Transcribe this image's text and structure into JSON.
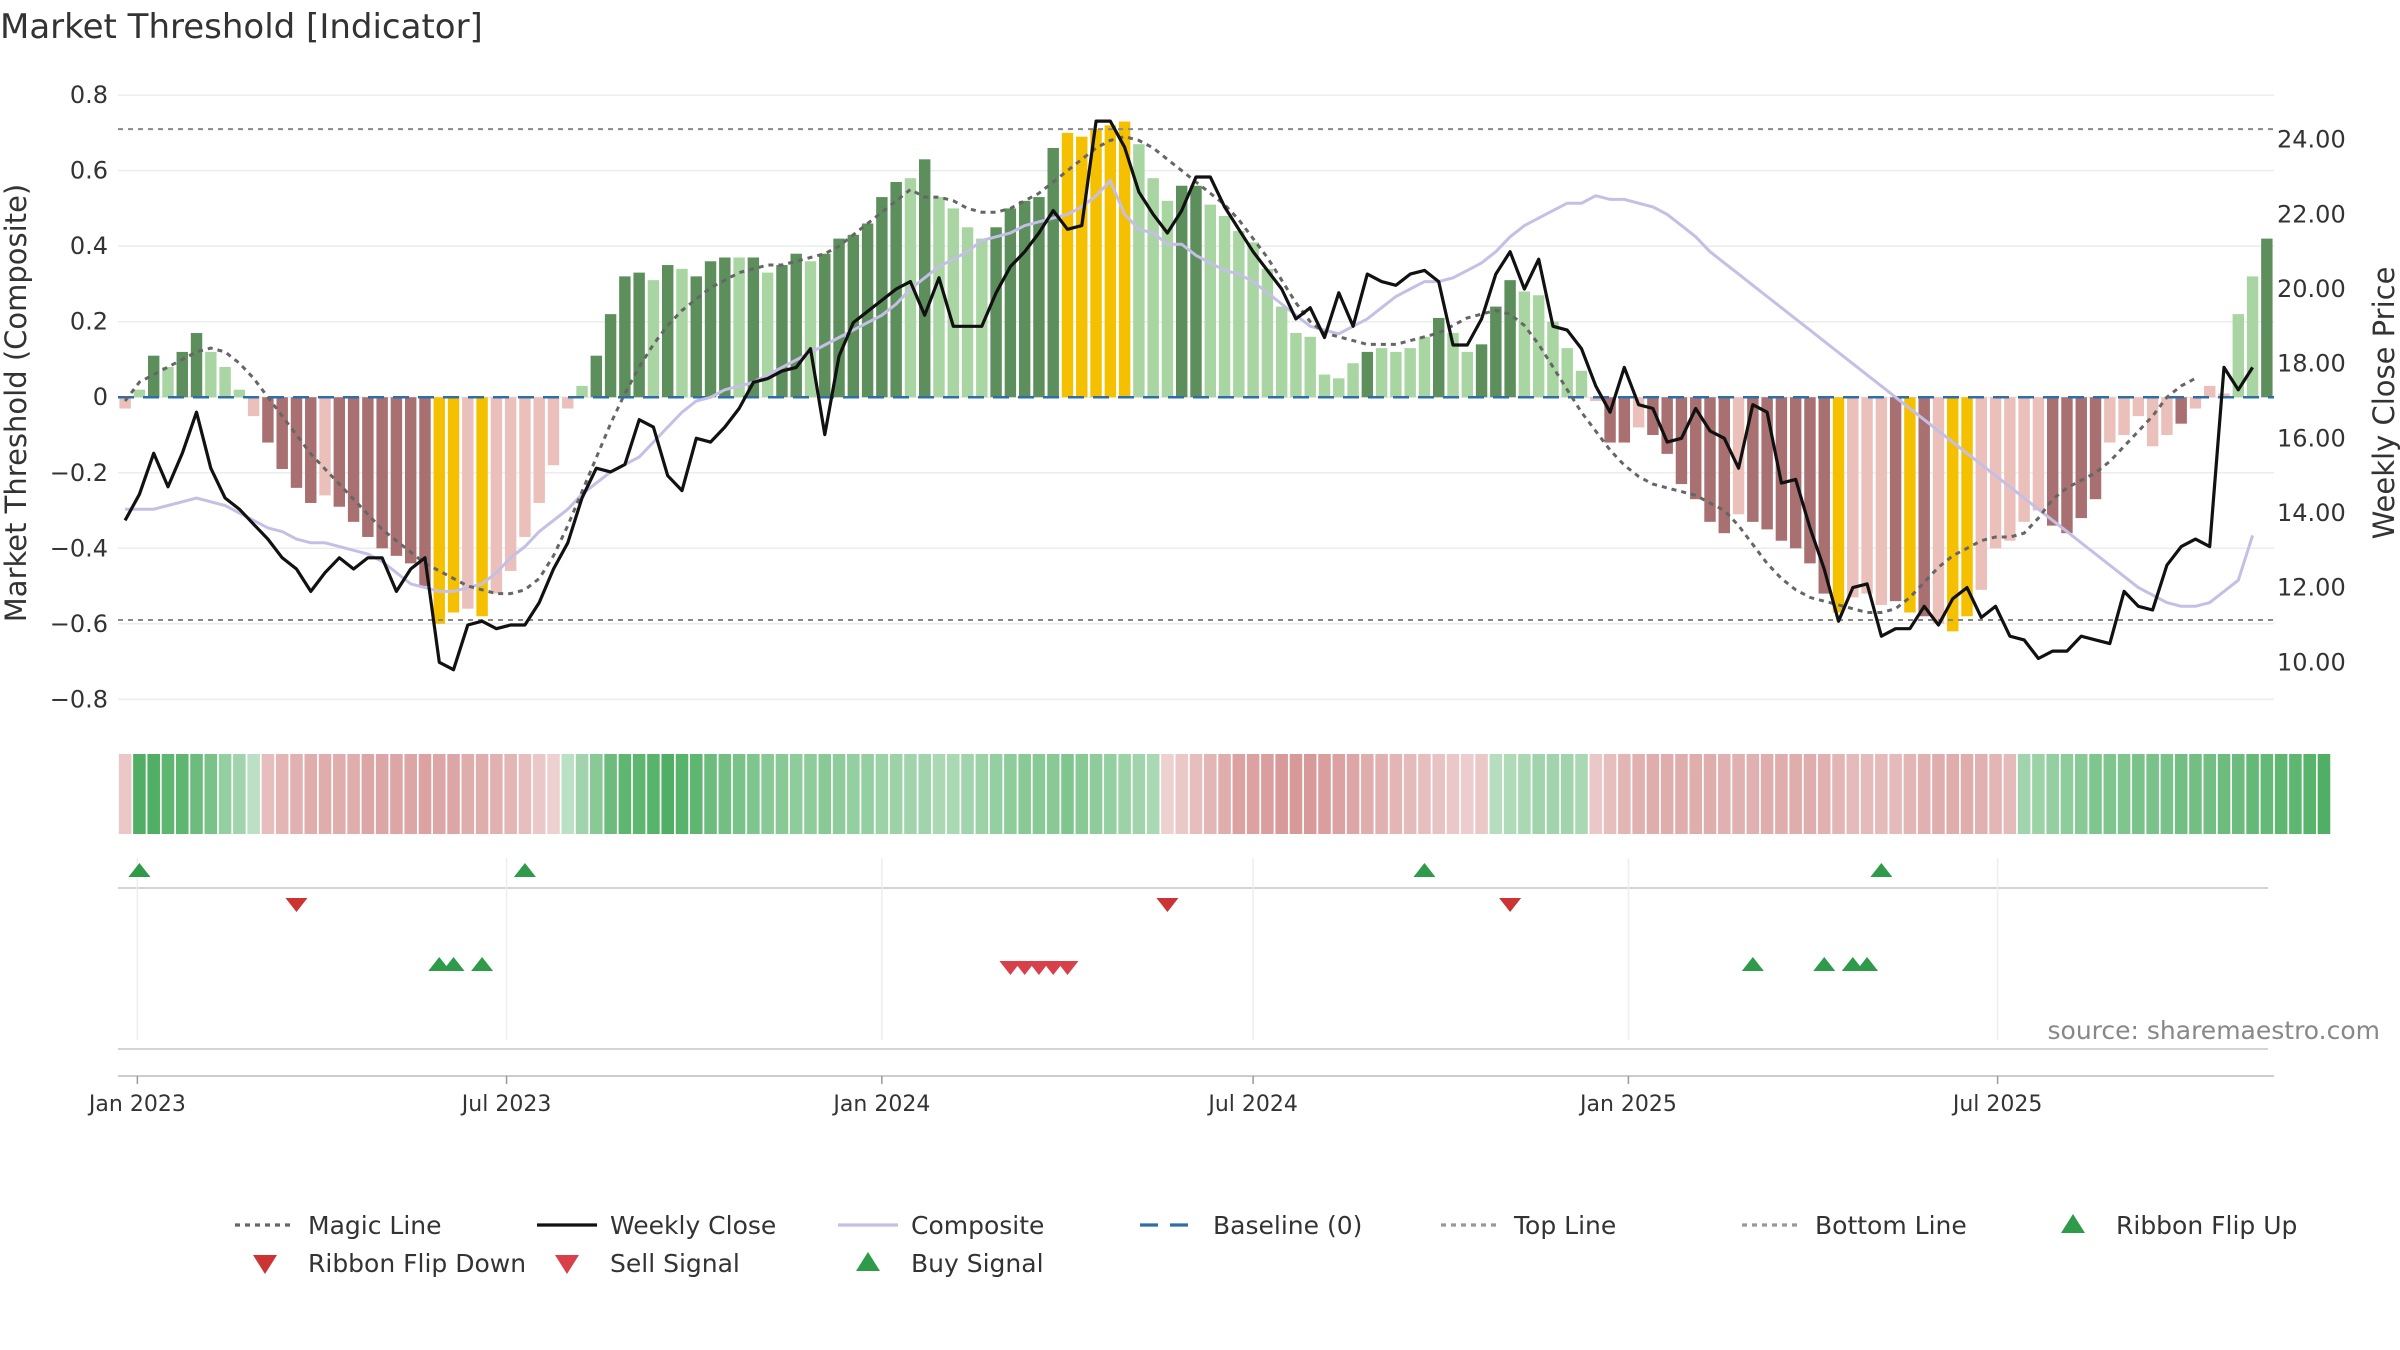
{
  "title": "Market Threshold [Indicator]",
  "source": "source: sharemaestro.com",
  "colors": {
    "bull_dark": "#5c8f5c",
    "bull_light": "#a8d5a2",
    "bear_dark": "#a87070",
    "bear_light": "#ebc0ba",
    "extreme": "#f5c000",
    "composite": "#c5bfe6",
    "baseline": "#2e6fa8",
    "buy": "#2e9a4a",
    "sell": "#d8404a",
    "flip_down": "#cc3333"
  },
  "chart_data": {
    "type": "bar",
    "title": "Market Threshold [Indicator]",
    "ylabel_left": "Market Threshold (Composite)",
    "ylabel_right": "Weekly Close Price",
    "ylim_left": [
      -0.86,
      0.84
    ],
    "ylim_right": [
      8.4,
      25.6
    ],
    "yticks_left": [
      "0.8",
      "0.6",
      "0.4",
      "0.2",
      "0",
      "−0.2",
      "−0.4",
      "−0.6",
      "−0.8"
    ],
    "yticks_right": [
      "24.00",
      "22.00",
      "20.00",
      "18.00",
      "16.00",
      "14.00",
      "12.00",
      "10.00"
    ],
    "top_line": 0.71,
    "bottom_line": -0.59,
    "baseline": 0,
    "x_start": "2022-12-26",
    "x_step_days": 7,
    "x_ticks": [
      {
        "label": "Jan 2023",
        "date": "2023-01-01"
      },
      {
        "label": "Jul 2023",
        "date": "2023-07-01"
      },
      {
        "label": "Jan 2024",
        "date": "2024-01-01"
      },
      {
        "label": "Jul 2024",
        "date": "2024-07-01"
      },
      {
        "label": "Jan 2025",
        "date": "2025-01-01"
      },
      {
        "label": "Jul 2025",
        "date": "2025-07-01"
      }
    ],
    "histogram": [
      -0.03,
      0.02,
      0.11,
      0.08,
      0.12,
      0.17,
      0.12,
      0.08,
      0.02,
      -0.05,
      -0.12,
      -0.19,
      -0.24,
      -0.28,
      -0.26,
      -0.29,
      -0.33,
      -0.37,
      -0.4,
      -0.42,
      -0.44,
      -0.5,
      -0.6,
      -0.57,
      -0.56,
      -0.58,
      -0.52,
      -0.46,
      -0.37,
      -0.28,
      -0.18,
      -0.03,
      0.03,
      0.11,
      0.22,
      0.32,
      0.33,
      0.31,
      0.35,
      0.34,
      0.32,
      0.36,
      0.37,
      0.37,
      0.37,
      0.33,
      0.35,
      0.38,
      0.36,
      0.38,
      0.42,
      0.43,
      0.46,
      0.53,
      0.57,
      0.58,
      0.63,
      0.53,
      0.5,
      0.45,
      0.42,
      0.45,
      0.5,
      0.52,
      0.53,
      0.66,
      0.7,
      0.69,
      0.71,
      0.72,
      0.73,
      0.67,
      0.58,
      0.52,
      0.56,
      0.56,
      0.51,
      0.48,
      0.44,
      0.41,
      0.34,
      0.24,
      0.17,
      0.16,
      0.06,
      0.05,
      0.09,
      0.12,
      0.13,
      0.12,
      0.13,
      0.16,
      0.21,
      0.17,
      0.12,
      0.14,
      0.24,
      0.31,
      0.28,
      0.27,
      0.2,
      0.13,
      0.07,
      -0.01,
      -0.12,
      -0.12,
      -0.08,
      -0.1,
      -0.15,
      -0.23,
      -0.27,
      -0.33,
      -0.36,
      -0.31,
      -0.33,
      -0.35,
      -0.38,
      -0.4,
      -0.44,
      -0.52,
      -0.57,
      -0.53,
      -0.52,
      -0.55,
      -0.54,
      -0.57,
      -0.58,
      -0.6,
      -0.62,
      -0.58,
      -0.51,
      -0.4,
      -0.38,
      -0.33,
      -0.3,
      -0.34,
      -0.36,
      -0.32,
      -0.27,
      -0.12,
      -0.1,
      -0.05,
      -0.13,
      -0.1,
      -0.07,
      -0.03,
      0.03,
      0.01,
      0.22,
      0.32,
      0.42
    ],
    "histogram_classes": [
      "bear_light",
      "bull_light",
      "bull_dark",
      "bull_light",
      "bull_dark",
      "bull_dark",
      "bull_light",
      "bull_light",
      "bull_light",
      "bear_light",
      "bear_dark",
      "bear_dark",
      "bear_dark",
      "bear_dark",
      "bear_light",
      "bear_dark",
      "bear_dark",
      "bear_dark",
      "bear_dark",
      "bear_dark",
      "bear_dark",
      "bear_dark",
      "extreme",
      "extreme",
      "bear_light",
      "extreme",
      "bear_light",
      "bear_light",
      "bear_light",
      "bear_light",
      "bear_light",
      "bear_light",
      "bull_light",
      "bull_dark",
      "bull_dark",
      "bull_dark",
      "bull_dark",
      "bull_light",
      "bull_dark",
      "bull_light",
      "bull_dark",
      "bull_dark",
      "bull_dark",
      "bull_light",
      "bull_dark",
      "bull_light",
      "bull_dark",
      "bull_dark",
      "bull_light",
      "bull_dark",
      "bull_dark",
      "bull_dark",
      "bull_dark",
      "bull_dark",
      "bull_dark",
      "bull_light",
      "bull_dark",
      "bull_light",
      "bull_light",
      "bull_light",
      "bull_light",
      "bull_dark",
      "bull_dark",
      "bull_dark",
      "bull_dark",
      "bull_dark",
      "extreme",
      "extreme",
      "extreme",
      "extreme",
      "extreme",
      "bull_light",
      "bull_light",
      "bull_light",
      "bull_dark",
      "bull_dark",
      "bull_light",
      "bull_light",
      "bull_light",
      "bull_light",
      "bull_light",
      "bull_light",
      "bull_light",
      "bull_light",
      "bull_light",
      "bull_light",
      "bull_light",
      "bull_dark",
      "bull_light",
      "bull_light",
      "bull_light",
      "bull_light",
      "bull_dark",
      "bull_light",
      "bull_light",
      "bull_dark",
      "bull_dark",
      "bull_dark",
      "bull_light",
      "bull_light",
      "bull_light",
      "bull_light",
      "bull_light",
      "bear_light",
      "bear_dark",
      "bear_dark",
      "bear_light",
      "bear_dark",
      "bear_dark",
      "bear_dark",
      "bear_dark",
      "bear_dark",
      "bear_dark",
      "bear_light",
      "bear_dark",
      "bear_dark",
      "bear_dark",
      "bear_dark",
      "bear_dark",
      "bear_dark",
      "extreme",
      "bear_light",
      "bear_light",
      "bear_light",
      "bear_dark",
      "extreme",
      "bear_dark",
      "bear_light",
      "extreme",
      "extreme",
      "bear_light",
      "bear_light",
      "bear_light",
      "bear_light",
      "bear_light",
      "bear_dark",
      "bear_dark",
      "bear_dark",
      "bear_dark",
      "bear_light",
      "bear_light",
      "bear_light",
      "bear_light",
      "bear_light",
      "bear_dark",
      "bear_light",
      "bear_light",
      "bear_light",
      "bull_light",
      "bull_light",
      "bull_dark",
      "bull_dark",
      "bull_dark"
    ],
    "ribbon": [
      -0.2,
      0.9,
      0.9,
      0.8,
      0.8,
      0.7,
      0.6,
      0.4,
      0.3,
      0.1,
      -0.3,
      -0.4,
      -0.45,
      -0.5,
      -0.5,
      -0.5,
      -0.5,
      -0.55,
      -0.55,
      -0.55,
      -0.55,
      -0.6,
      -0.55,
      -0.55,
      -0.5,
      -0.5,
      -0.45,
      -0.4,
      -0.3,
      -0.2,
      -0.1,
      0.1,
      0.3,
      0.5,
      0.7,
      0.8,
      0.8,
      0.85,
      0.9,
      0.85,
      0.8,
      0.7,
      0.65,
      0.6,
      0.55,
      0.5,
      0.5,
      0.45,
      0.45,
      0.5,
      0.45,
      0.4,
      0.4,
      0.35,
      0.35,
      0.3,
      0.3,
      0.25,
      0.25,
      0.3,
      0.35,
      0.4,
      0.45,
      0.5,
      0.5,
      0.5,
      0.55,
      0.5,
      0.45,
      0.4,
      0.35,
      0.3,
      0.25,
      -0.1,
      -0.2,
      -0.3,
      -0.4,
      -0.5,
      -0.6,
      -0.6,
      -0.65,
      -0.7,
      -0.7,
      -0.7,
      -0.65,
      -0.6,
      -0.55,
      -0.5,
      -0.45,
      -0.4,
      -0.35,
      -0.3,
      -0.25,
      -0.2,
      -0.15,
      -0.2,
      0.15,
      0.2,
      0.25,
      0.3,
      0.3,
      0.3,
      0.25,
      -0.2,
      -0.3,
      -0.4,
      -0.45,
      -0.5,
      -0.5,
      -0.5,
      -0.5,
      -0.5,
      -0.45,
      -0.45,
      -0.45,
      -0.5,
      -0.5,
      -0.5,
      -0.5,
      -0.45,
      -0.4,
      -0.35,
      -0.35,
      -0.35,
      -0.35,
      -0.4,
      -0.45,
      -0.5,
      -0.5,
      -0.5,
      -0.45,
      -0.4,
      -0.35,
      0.3,
      0.35,
      0.4,
      0.45,
      0.5,
      0.55,
      0.55,
      0.55,
      0.6,
      0.6,
      0.6,
      0.65,
      0.65,
      0.65,
      0.7,
      0.7,
      0.75,
      0.75,
      0.8,
      0.8,
      0.85,
      0.9
    ],
    "weekly_close": [
      13.8,
      14.5,
      15.6,
      14.7,
      15.6,
      16.7,
      15.2,
      14.4,
      14.1,
      13.7,
      13.3,
      12.8,
      12.5,
      11.9,
      12.4,
      12.8,
      12.5,
      12.8,
      12.8,
      11.9,
      12.5,
      12.8,
      10.0,
      9.8,
      11.0,
      11.1,
      10.9,
      11.0,
      11.0,
      11.6,
      12.5,
      13.2,
      14.4,
      15.2,
      15.1,
      15.3,
      16.5,
      16.3,
      15.0,
      14.6,
      16.0,
      15.9,
      16.3,
      16.8,
      17.5,
      17.6,
      17.8,
      17.9,
      18.4,
      16.1,
      18.2,
      19.1,
      19.4,
      19.7,
      20.0,
      20.2,
      19.3,
      20.3,
      19.0,
      19.0,
      19.0,
      19.9,
      20.6,
      21.0,
      21.5,
      22.1,
      21.6,
      21.7,
      24.5,
      24.5,
      23.8,
      22.6,
      22.0,
      21.5,
      22.1,
      23.0,
      23.0,
      22.2,
      21.6,
      21.0,
      20.5,
      20.0,
      19.2,
      19.5,
      18.7,
      19.9,
      19.0,
      20.4,
      20.2,
      20.1,
      20.4,
      20.5,
      20.2,
      18.5,
      18.5,
      19.2,
      20.4,
      21.0,
      20.0,
      20.8,
      19.0,
      18.9,
      18.4,
      17.4,
      16.7,
      17.9,
      16.9,
      16.8,
      15.9,
      16.0,
      16.8,
      16.2,
      16.0,
      15.2,
      16.9,
      16.7,
      14.8,
      14.9,
      13.6,
      12.5,
      11.1,
      12.0,
      12.1,
      10.7,
      10.9,
      10.9,
      11.5,
      11.0,
      11.7,
      12.0,
      11.2,
      11.5,
      10.7,
      10.6,
      10.1,
      10.3,
      10.3,
      10.7,
      10.6,
      10.5,
      11.9,
      11.5,
      11.4,
      12.6,
      13.1,
      13.3,
      13.1,
      17.9,
      17.3,
      17.9
    ],
    "magic_line": [
      -0.01,
      0.04,
      0.06,
      0.08,
      0.1,
      0.12,
      0.13,
      0.12,
      0.09,
      0.05,
      0.0,
      -0.05,
      -0.1,
      -0.15,
      -0.19,
      -0.23,
      -0.27,
      -0.31,
      -0.35,
      -0.38,
      -0.41,
      -0.44,
      -0.46,
      -0.48,
      -0.5,
      -0.51,
      -0.52,
      -0.52,
      -0.51,
      -0.48,
      -0.42,
      -0.34,
      -0.25,
      -0.16,
      -0.07,
      0.01,
      0.08,
      0.14,
      0.19,
      0.23,
      0.26,
      0.29,
      0.31,
      0.33,
      0.34,
      0.35,
      0.35,
      0.36,
      0.37,
      0.38,
      0.4,
      0.43,
      0.46,
      0.49,
      0.52,
      0.55,
      0.53,
      0.53,
      0.52,
      0.5,
      0.49,
      0.49,
      0.5,
      0.52,
      0.54,
      0.57,
      0.6,
      0.63,
      0.66,
      0.68,
      0.69,
      0.68,
      0.66,
      0.63,
      0.6,
      0.57,
      0.54,
      0.51,
      0.47,
      0.42,
      0.37,
      0.31,
      0.25,
      0.2,
      0.17,
      0.16,
      0.15,
      0.14,
      0.14,
      0.14,
      0.15,
      0.16,
      0.17,
      0.19,
      0.21,
      0.22,
      0.23,
      0.22,
      0.19,
      0.14,
      0.08,
      0.02,
      -0.04,
      -0.09,
      -0.14,
      -0.18,
      -0.21,
      -0.23,
      -0.24,
      -0.25,
      -0.26,
      -0.28,
      -0.3,
      -0.34,
      -0.39,
      -0.44,
      -0.48,
      -0.51,
      -0.53,
      -0.54,
      -0.55,
      -0.56,
      -0.57,
      -0.57,
      -0.56,
      -0.53,
      -0.49,
      -0.45,
      -0.42,
      -0.4,
      -0.38,
      -0.37,
      -0.37,
      -0.36,
      -0.32,
      -0.27,
      -0.24,
      -0.22,
      -0.2,
      -0.17,
      -0.13,
      -0.09,
      -0.05,
      0.0,
      0.03,
      0.05
    ],
    "composite": [
      14.1,
      14.1,
      14.1,
      14.2,
      14.3,
      14.4,
      14.3,
      14.2,
      14.0,
      13.8,
      13.6,
      13.5,
      13.3,
      13.2,
      13.2,
      13.1,
      13.0,
      12.9,
      12.7,
      12.4,
      12.1,
      12.0,
      11.9,
      11.9,
      12.0,
      12.1,
      12.4,
      12.8,
      13.1,
      13.5,
      13.8,
      14.1,
      14.5,
      14.8,
      15.1,
      15.3,
      15.5,
      15.9,
      16.3,
      16.7,
      17.0,
      17.1,
      17.3,
      17.4,
      17.5,
      17.7,
      17.9,
      18.1,
      18.3,
      18.5,
      18.7,
      18.9,
      19.1,
      19.3,
      19.6,
      20.0,
      20.3,
      20.6,
      20.8,
      21.0,
      21.3,
      21.4,
      21.5,
      21.7,
      21.8,
      21.9,
      22.0,
      22.2,
      22.5,
      22.9,
      22.0,
      21.6,
      21.5,
      21.2,
      21.2,
      20.9,
      20.7,
      20.5,
      20.4,
      20.2,
      19.9,
      19.6,
      19.3,
      19.0,
      18.9,
      18.8,
      19.0,
      19.2,
      19.5,
      19.8,
      20.0,
      20.2,
      20.2,
      20.3,
      20.5,
      20.7,
      21.0,
      21.4,
      21.7,
      21.9,
      22.1,
      22.3,
      22.3,
      22.5,
      22.4,
      22.4,
      22.3,
      22.2,
      22.0,
      21.7,
      21.4,
      21.0,
      20.7,
      20.4,
      20.1,
      19.8,
      19.5,
      19.2,
      18.9,
      18.6,
      18.3,
      18.0,
      17.7,
      17.4,
      17.1,
      16.8,
      16.5,
      16.2,
      15.9,
      15.6,
      15.3,
      15.0,
      14.7,
      14.4,
      14.1,
      13.8,
      13.5,
      13.2,
      12.9,
      12.6,
      12.3,
      12.0,
      11.8,
      11.6,
      11.5,
      11.5,
      11.6,
      11.9,
      12.2,
      13.4
    ],
    "ribbon_flip_up": [
      "2023-01-02",
      "2023-07-10",
      "2024-09-23",
      "2025-05-05"
    ],
    "ribbon_flip_down": [
      "2023-03-20",
      "2024-05-20",
      "2024-11-04"
    ],
    "sell_signal": [
      "2024-03-04",
      "2024-03-11",
      "2024-03-18",
      "2024-03-25",
      "2024-04-01"
    ],
    "buy_signal": [
      "2023-05-29",
      "2023-06-05",
      "2023-06-19",
      "2025-03-03",
      "2025-04-07",
      "2025-04-21",
      "2025-04-28"
    ],
    "legend": [
      {
        "label": "Magic Line",
        "kind": "dotted",
        "color": "#666666"
      },
      {
        "label": "Weekly Close",
        "kind": "line",
        "color": "#111111"
      },
      {
        "label": "Composite",
        "kind": "line",
        "color": "#c5bfe6"
      },
      {
        "label": "Baseline (0)",
        "kind": "dashed",
        "color": "#2e6fa8"
      },
      {
        "label": "Top Line",
        "kind": "dotted",
        "color": "#999999"
      },
      {
        "label": "Bottom Line",
        "kind": "dotted",
        "color": "#999999"
      },
      {
        "label": "Ribbon Flip Up",
        "kind": "tri-up",
        "color": "#2e9a4a"
      },
      {
        "label": "Ribbon Flip Down",
        "kind": "tri-down",
        "color": "#cc3333"
      },
      {
        "label": "Sell Signal",
        "kind": "tri-down",
        "color": "#d8404a"
      },
      {
        "label": "Buy Signal",
        "kind": "tri-up",
        "color": "#2e9a4a"
      }
    ]
  }
}
